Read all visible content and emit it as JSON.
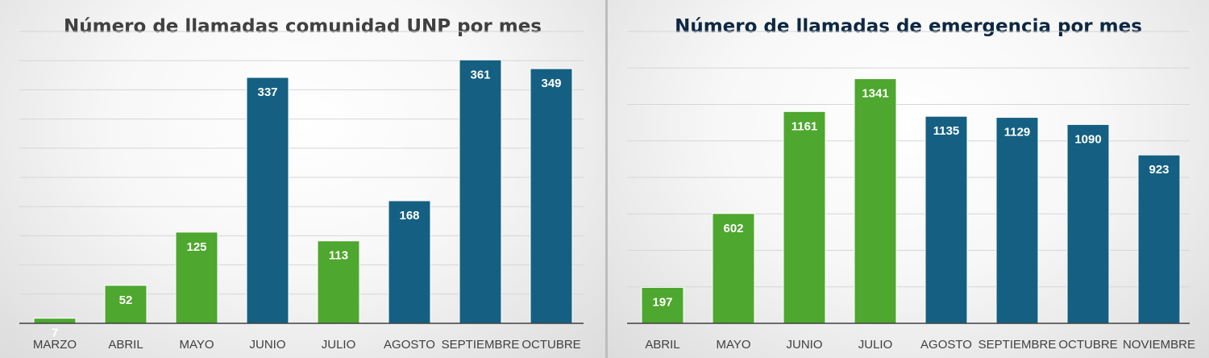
{
  "chart_data": [
    {
      "type": "bar",
      "title": "Número de llamadas comunidad UNP por mes",
      "title_color": "#404040",
      "categories": [
        "MARZO",
        "ABRIL",
        "MAYO",
        "JUNIO",
        "JULIO",
        "AGOSTO",
        "SEPTIEMBRE",
        "OCTUBRE"
      ],
      "values": [
        7,
        52,
        125,
        337,
        113,
        168,
        361,
        349
      ],
      "bar_colors": [
        "#4ea72e",
        "#4ea72e",
        "#4ea72e",
        "#156082",
        "#4ea72e",
        "#156082",
        "#156082",
        "#156082"
      ],
      "ylim": [
        0,
        400
      ],
      "y_gridline_step": 40,
      "grid": true,
      "legend": "none",
      "xlabel": "",
      "ylabel": ""
    },
    {
      "type": "bar",
      "title": "Número de llamadas de emergencia por mes",
      "title_color": "#0e2841",
      "categories": [
        "ABRIL",
        "MAYO",
        "JUNIO",
        "JULIO",
        "AGOSTO",
        "SEPTIEMBRE",
        "OCTUBRE",
        "NOVIEMBRE"
      ],
      "values": [
        197,
        602,
        1161,
        1341,
        1135,
        1129,
        1090,
        923
      ],
      "bar_colors": [
        "#4ea72e",
        "#4ea72e",
        "#4ea72e",
        "#4ea72e",
        "#156082",
        "#156082",
        "#156082",
        "#156082"
      ],
      "ylim": [
        0,
        1600
      ],
      "y_gridline_step": 200,
      "grid": true,
      "legend": "none",
      "xlabel": "",
      "ylabel": ""
    }
  ]
}
